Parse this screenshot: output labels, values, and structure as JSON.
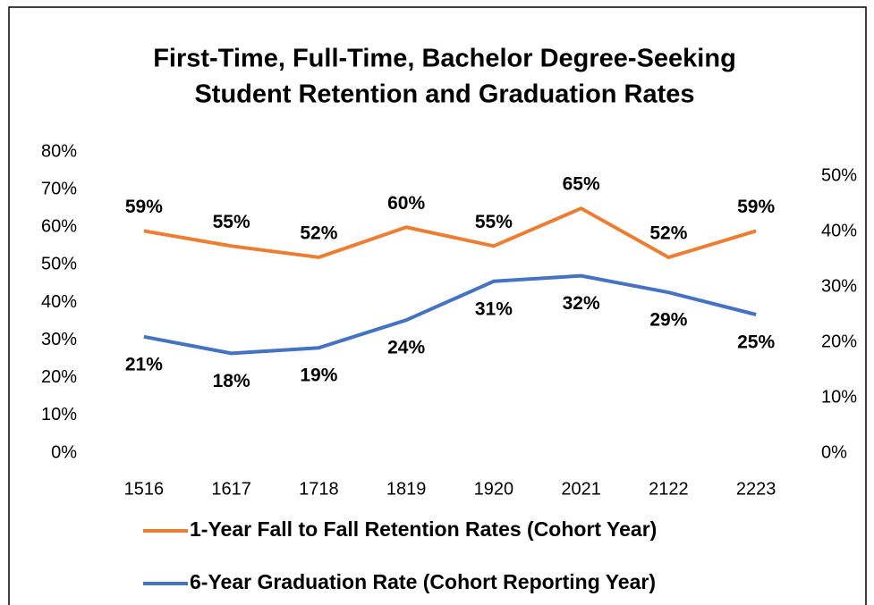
{
  "chart_data": {
    "type": "line",
    "title": [
      "First-Time, Full-Time, Bachelor Degree-Seeking",
      "Student Retention and Graduation Rates"
    ],
    "categories": [
      "1516",
      "1617",
      "1718",
      "1819",
      "1920",
      "2021",
      "2122",
      "2223"
    ],
    "series": [
      {
        "name": "1-Year Fall to Fall Retention Rates (Cohort Year)",
        "color": "#ed7d31",
        "values": [
          59,
          55,
          52,
          60,
          55,
          65,
          52,
          59
        ],
        "value_labels": [
          "59%",
          "55%",
          "52%",
          "60%",
          "55%",
          "65%",
          "52%",
          "59%"
        ]
      },
      {
        "name": "6-Year Graduation Rate (Cohort Reporting Year)",
        "color": "#4472c4",
        "axis": "y2",
        "values": [
          21,
          18,
          19,
          24,
          31,
          32,
          29,
          25
        ],
        "value_labels": [
          "21%",
          "18%",
          "19%",
          "24%",
          "31%",
          "32%",
          "29%",
          "25%"
        ]
      }
    ],
    "ylim": [
      0,
      80
    ],
    "yticks": [
      {
        "value": 0,
        "label": "0%"
      },
      {
        "value": 10,
        "label": "10%"
      },
      {
        "value": 20,
        "label": "20%"
      },
      {
        "value": 30,
        "label": "30%"
      },
      {
        "value": 40,
        "label": "40%"
      },
      {
        "value": 50,
        "label": "50%"
      },
      {
        "value": 60,
        "label": "60%"
      },
      {
        "value": 70,
        "label": "70%"
      },
      {
        "value": 80,
        "label": "80%"
      }
    ],
    "y2lim": [
      0,
      50
    ],
    "y2ticks": [
      {
        "value": 0,
        "label": "0%"
      },
      {
        "value": 10,
        "label": "10%"
      },
      {
        "value": 20,
        "label": "20%"
      },
      {
        "value": 30,
        "label": "30%"
      },
      {
        "value": 40,
        "label": "40%"
      },
      {
        "value": 50,
        "label": "50%"
      }
    ]
  }
}
